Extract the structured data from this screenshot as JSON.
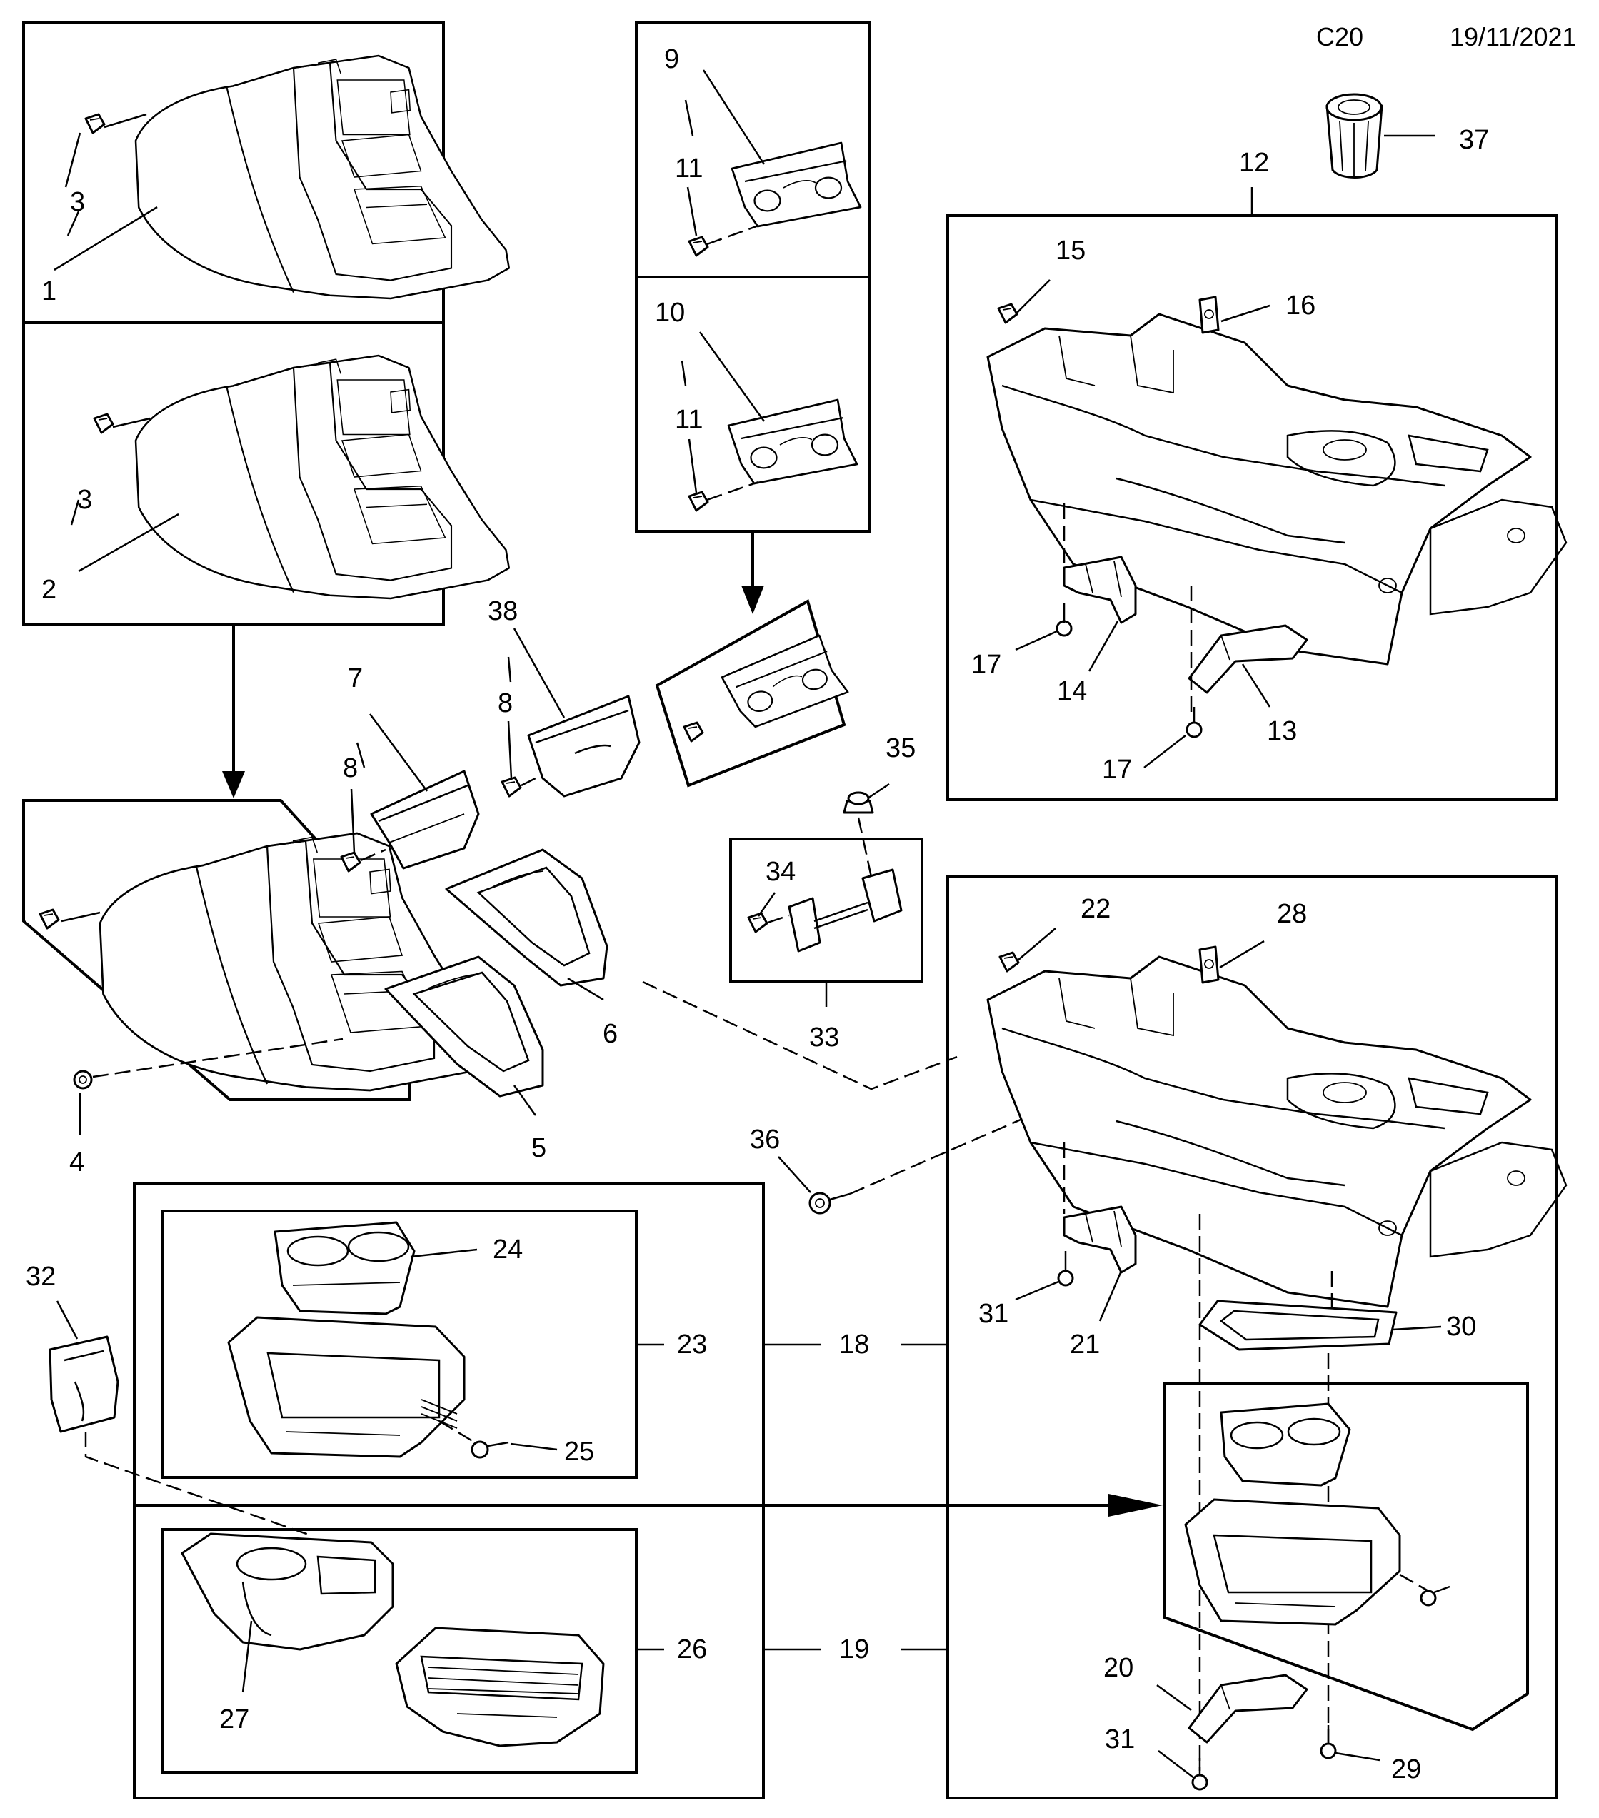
{
  "header": {
    "code": "C20",
    "date": "19/11/2021"
  },
  "callouts": [
    "1",
    "2",
    "3",
    "3",
    "4",
    "5",
    "6",
    "7",
    "8",
    "8",
    "9",
    "10",
    "11",
    "11",
    "12",
    "13",
    "14",
    "15",
    "16",
    "17",
    "17",
    "18",
    "19",
    "20",
    "21",
    "22",
    "23",
    "24",
    "25",
    "26",
    "27",
    "28",
    "29",
    "30",
    "31",
    "31",
    "32",
    "33",
    "34",
    "35",
    "36",
    "37",
    "38"
  ]
}
